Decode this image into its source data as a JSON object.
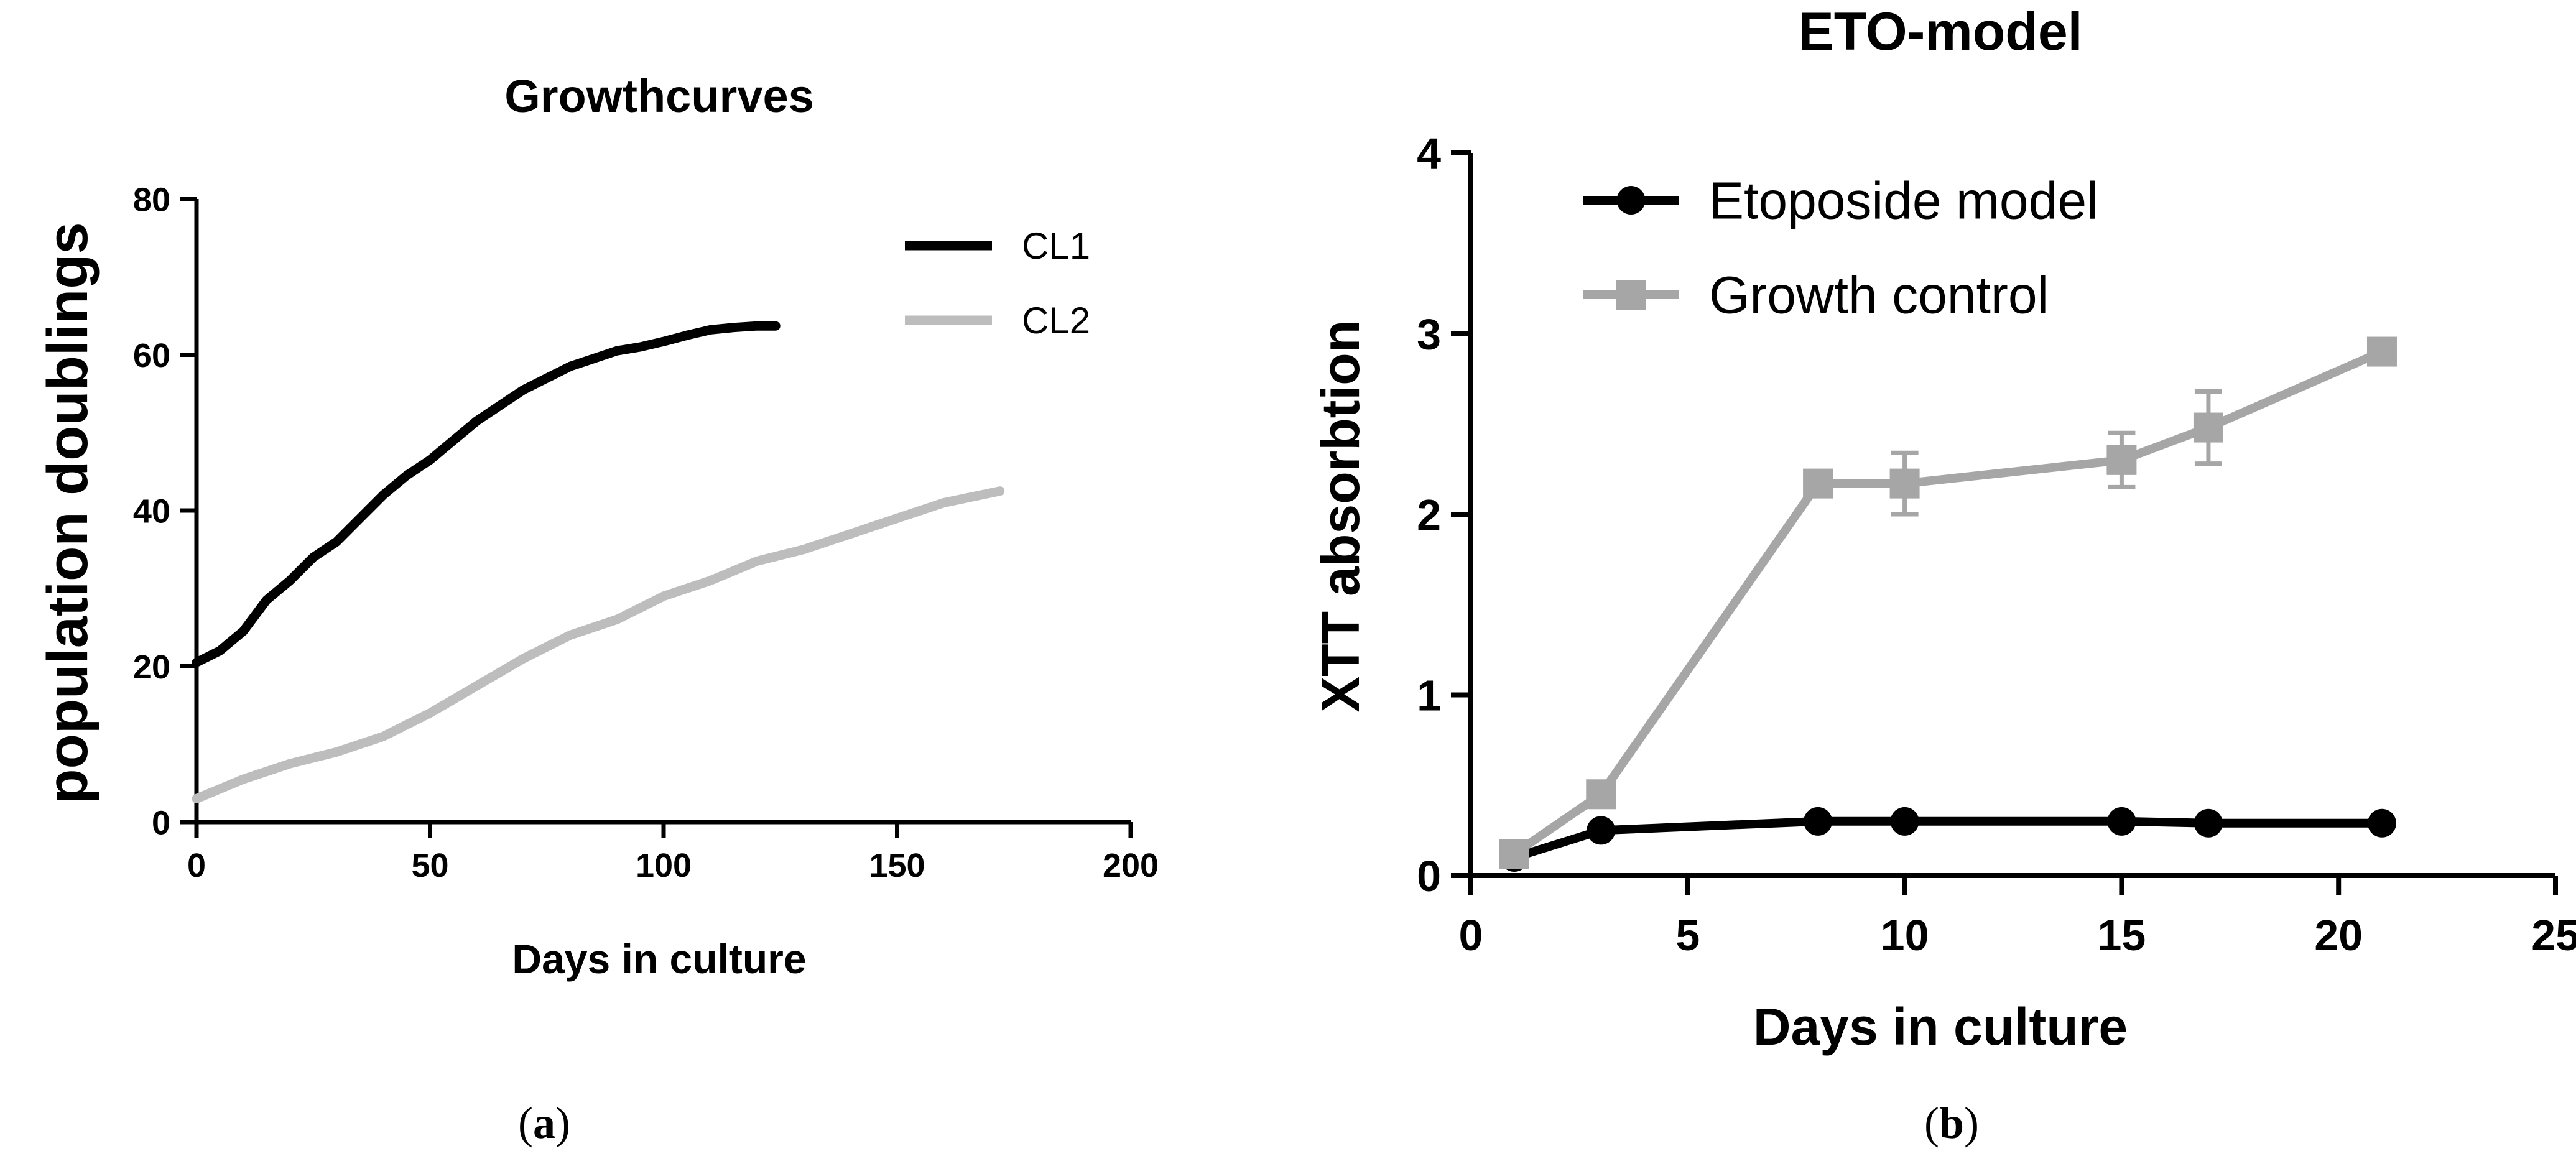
{
  "chart_data": [
    {
      "type": "line",
      "title": "Growthcurves",
      "xlabel": "Days in culture",
      "ylabel": "population doublings",
      "xlim": [
        0,
        200
      ],
      "ylim": [
        0,
        80
      ],
      "xticks": [
        "0",
        "50",
        "100",
        "150",
        "200"
      ],
      "yticks": [
        "0",
        "20",
        "40",
        "60",
        "80"
      ],
      "legend_position": "top-right",
      "panel_label": "a",
      "series": [
        {
          "name": "CL1",
          "color": "#000000",
          "x": [
            0,
            5,
            10,
            15,
            20,
            25,
            30,
            35,
            40,
            45,
            50,
            55,
            60,
            65,
            70,
            75,
            80,
            85,
            90,
            95,
            100,
            105,
            110,
            115,
            120,
            124
          ],
          "y": [
            20.5,
            22,
            24.5,
            28.5,
            31,
            34,
            36,
            39,
            42,
            44.5,
            46.5,
            49,
            51.5,
            53.5,
            55.5,
            57,
            58.5,
            59.5,
            60.5,
            61,
            61.7,
            62.5,
            63.2,
            63.5,
            63.7,
            63.7
          ]
        },
        {
          "name": "CL2",
          "color": "#bdbdbd",
          "x": [
            0,
            10,
            20,
            30,
            40,
            50,
            60,
            70,
            80,
            90,
            100,
            110,
            120,
            130,
            140,
            150,
            160,
            172
          ],
          "y": [
            3,
            5.5,
            7.5,
            9,
            11,
            14,
            17.5,
            21,
            24,
            26,
            29,
            31,
            33.5,
            35,
            37,
            39,
            41,
            42.5
          ]
        }
      ]
    },
    {
      "type": "line",
      "title": "ETO-model",
      "xlabel": "Days in culture",
      "ylabel": "XTT absorbtion",
      "xlim": [
        0,
        25
      ],
      "ylim": [
        0,
        4
      ],
      "xticks": [
        "0",
        "5",
        "10",
        "15",
        "20",
        "25"
      ],
      "yticks": [
        "0",
        "1",
        "2",
        "3",
        "4"
      ],
      "legend_position": "top-left",
      "panel_label": "b",
      "series": [
        {
          "name": "Etoposide model",
          "color": "#000000",
          "marker": "circle",
          "x": [
            1,
            3,
            8,
            10,
            15,
            17,
            21
          ],
          "y": [
            0.1,
            0.25,
            0.3,
            0.3,
            0.3,
            0.29,
            0.29
          ],
          "err": [
            0.02,
            0.02,
            0.02,
            0.02,
            0.02,
            0.02,
            0.02
          ]
        },
        {
          "name": "Growth control",
          "color": "#a6a6a6",
          "marker": "square",
          "x": [
            1,
            3,
            8,
            10,
            15,
            17,
            21
          ],
          "y": [
            0.12,
            0.45,
            2.17,
            2.17,
            2.3,
            2.48,
            2.9
          ],
          "err": [
            0.02,
            0.05,
            0.05,
            0.17,
            0.15,
            0.2,
            0.05
          ]
        }
      ]
    }
  ]
}
